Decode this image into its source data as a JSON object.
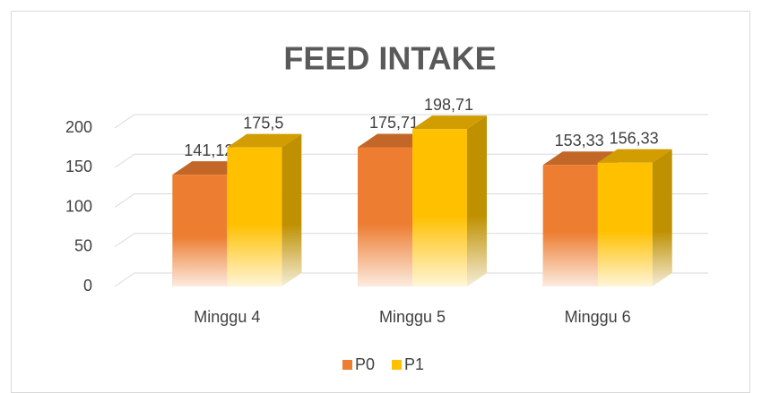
{
  "chart_data": {
    "type": "bar3d",
    "title": "FEED INTAKE",
    "categories": [
      "Minggu 4",
      "Minggu 5",
      "Minggu 6"
    ],
    "series": [
      {
        "name": "P0",
        "color": "#ed7d31",
        "values": [
          141.12,
          175.71,
          153.33
        ],
        "value_labels": [
          "141,12",
          "175,71",
          "153,33"
        ]
      },
      {
        "name": "P1",
        "color": "#ffc000",
        "values": [
          175.5,
          198.71,
          156.33
        ],
        "value_labels": [
          "175,5",
          "198,71",
          "156,33"
        ]
      }
    ],
    "ylim": [
      0,
      200
    ],
    "yticks": [
      0,
      50,
      100,
      150,
      200
    ],
    "grid": true,
    "legend": "bottom"
  }
}
